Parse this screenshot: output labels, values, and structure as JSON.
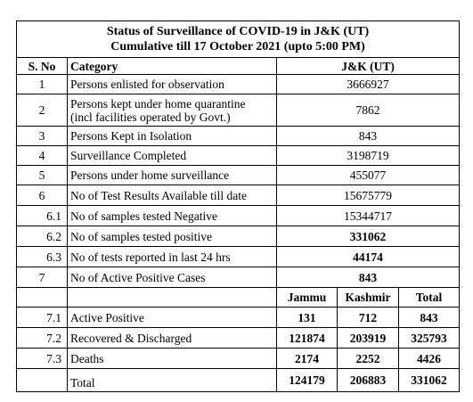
{
  "title": {
    "line1": "Status of Surveillance of COVID-19 in J&K (UT)",
    "line2": "Cumulative till 17 October 2021 (upto 5:00 PM)"
  },
  "headers": {
    "sno": "S. No",
    "category": "Category",
    "value": "J&K (UT)"
  },
  "rows": [
    {
      "sno": "1",
      "category": "Persons enlisted for observation",
      "value": "3666927"
    },
    {
      "sno": "2",
      "category": "Persons kept under home quarantine",
      "category2": "(incl facilities operated by Govt.)",
      "value": "7862"
    },
    {
      "sno": "3",
      "category": "Persons Kept in Isolation",
      "value": "843"
    },
    {
      "sno": "4",
      "category": "Surveillance  Completed",
      "value": "3198719"
    },
    {
      "sno": "5",
      "category": "Persons under home surveillance",
      "value": "455077"
    },
    {
      "sno": "6",
      "category": "No of Test Results Available till date",
      "value": "15675779"
    },
    {
      "sno": "6.1",
      "category": "No of samples tested Negative",
      "value": "15344717"
    },
    {
      "sno": "6.2",
      "category": "No of samples tested positive",
      "value": "331062"
    },
    {
      "sno": "6.3",
      "category": "No of tests reported in last 24 hrs",
      "value": "44174"
    },
    {
      "sno": "7",
      "category": "No of Active Positive Cases",
      "value": "843"
    }
  ],
  "subheaders": {
    "jammu": "Jammu",
    "kashmir": "Kashmir",
    "total": "Total"
  },
  "subrows": [
    {
      "sno": "7.1",
      "category": "Active Positive",
      "jammu": "131",
      "kashmir": "712",
      "total": "843"
    },
    {
      "sno": "7.2",
      "category": "Recovered & Discharged",
      "jammu": "121874",
      "kashmir": "203919",
      "total": "325793"
    },
    {
      "sno": "7.3",
      "category": "Deaths",
      "jammu": "2174",
      "kashmir": "2252",
      "total": "4426"
    }
  ],
  "total_row": {
    "category": "Total",
    "jammu": "124179",
    "kashmir": "206883",
    "total": "331062"
  }
}
